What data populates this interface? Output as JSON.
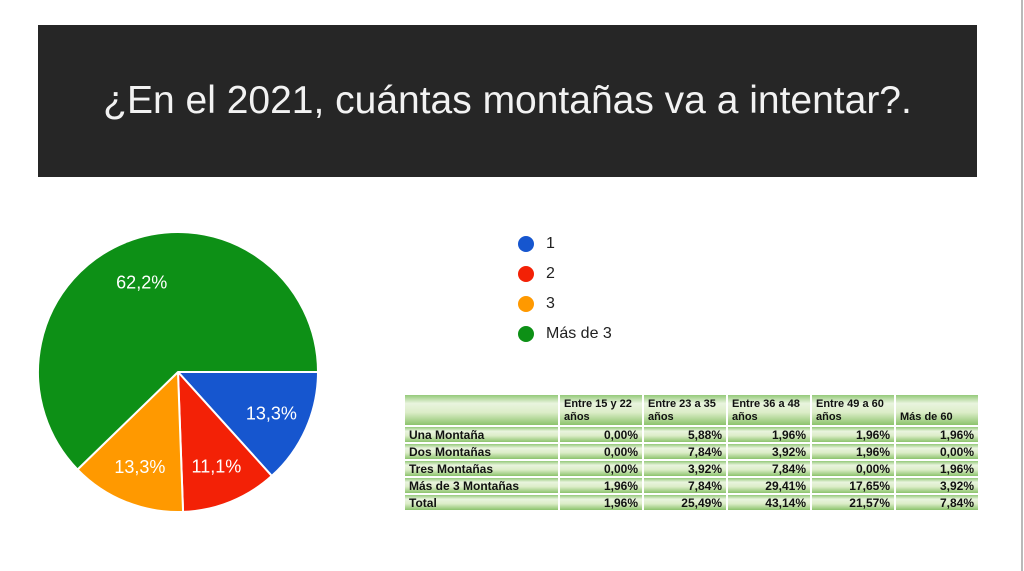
{
  "slide": {
    "title": "¿En el 2021, cuántas montañas va a intentar?.",
    "banner_color": "#262626",
    "title_color": "#f2f2f2",
    "edge_color": "#b9b9b9"
  },
  "chart_data": {
    "type": "pie",
    "labels": [
      "1",
      "2",
      "3",
      "Más de 3"
    ],
    "values": [
      13.3,
      11.1,
      13.3,
      62.2
    ],
    "display_labels": [
      "13,3%",
      "11,1%",
      "13,3%",
      "62,2%"
    ],
    "colors": [
      "#1656cf",
      "#f32106",
      "#ff9900",
      "#0d9016"
    ],
    "start_angle_deg": 0,
    "direction": "clockwise",
    "label_color": "#ffffff",
    "legend_position": "right",
    "slice_border_color": "#ffffff"
  },
  "legend": {
    "items": [
      {
        "label": "1",
        "color": "#1656cf"
      },
      {
        "label": "2",
        "color": "#f32106"
      },
      {
        "label": "3",
        "color": "#ff9900"
      },
      {
        "label": "Más de 3",
        "color": "#0d9016"
      }
    ]
  },
  "table": {
    "header": [
      "",
      "Entre 15 y 22 años",
      "Entre 23 a 35 años",
      "Entre 36 a 48 años",
      "Entre 49 a 60 años",
      "Más de 60"
    ],
    "rows": [
      [
        "Una Montaña",
        "0,00%",
        "5,88%",
        "1,96%",
        "1,96%",
        "1,96%"
      ],
      [
        "Dos Montañas",
        "0,00%",
        "7,84%",
        "3,92%",
        "1,96%",
        "0,00%"
      ],
      [
        "Tres Montañas",
        "0,00%",
        "3,92%",
        "7,84%",
        "0,00%",
        "1,96%"
      ],
      [
        "Más de 3 Montañas",
        "1,96%",
        "7,84%",
        "29,41%",
        "17,65%",
        "3,92%"
      ],
      [
        "Total",
        "1,96%",
        "25,49%",
        "43,14%",
        "21,57%",
        "7,84%"
      ]
    ]
  }
}
